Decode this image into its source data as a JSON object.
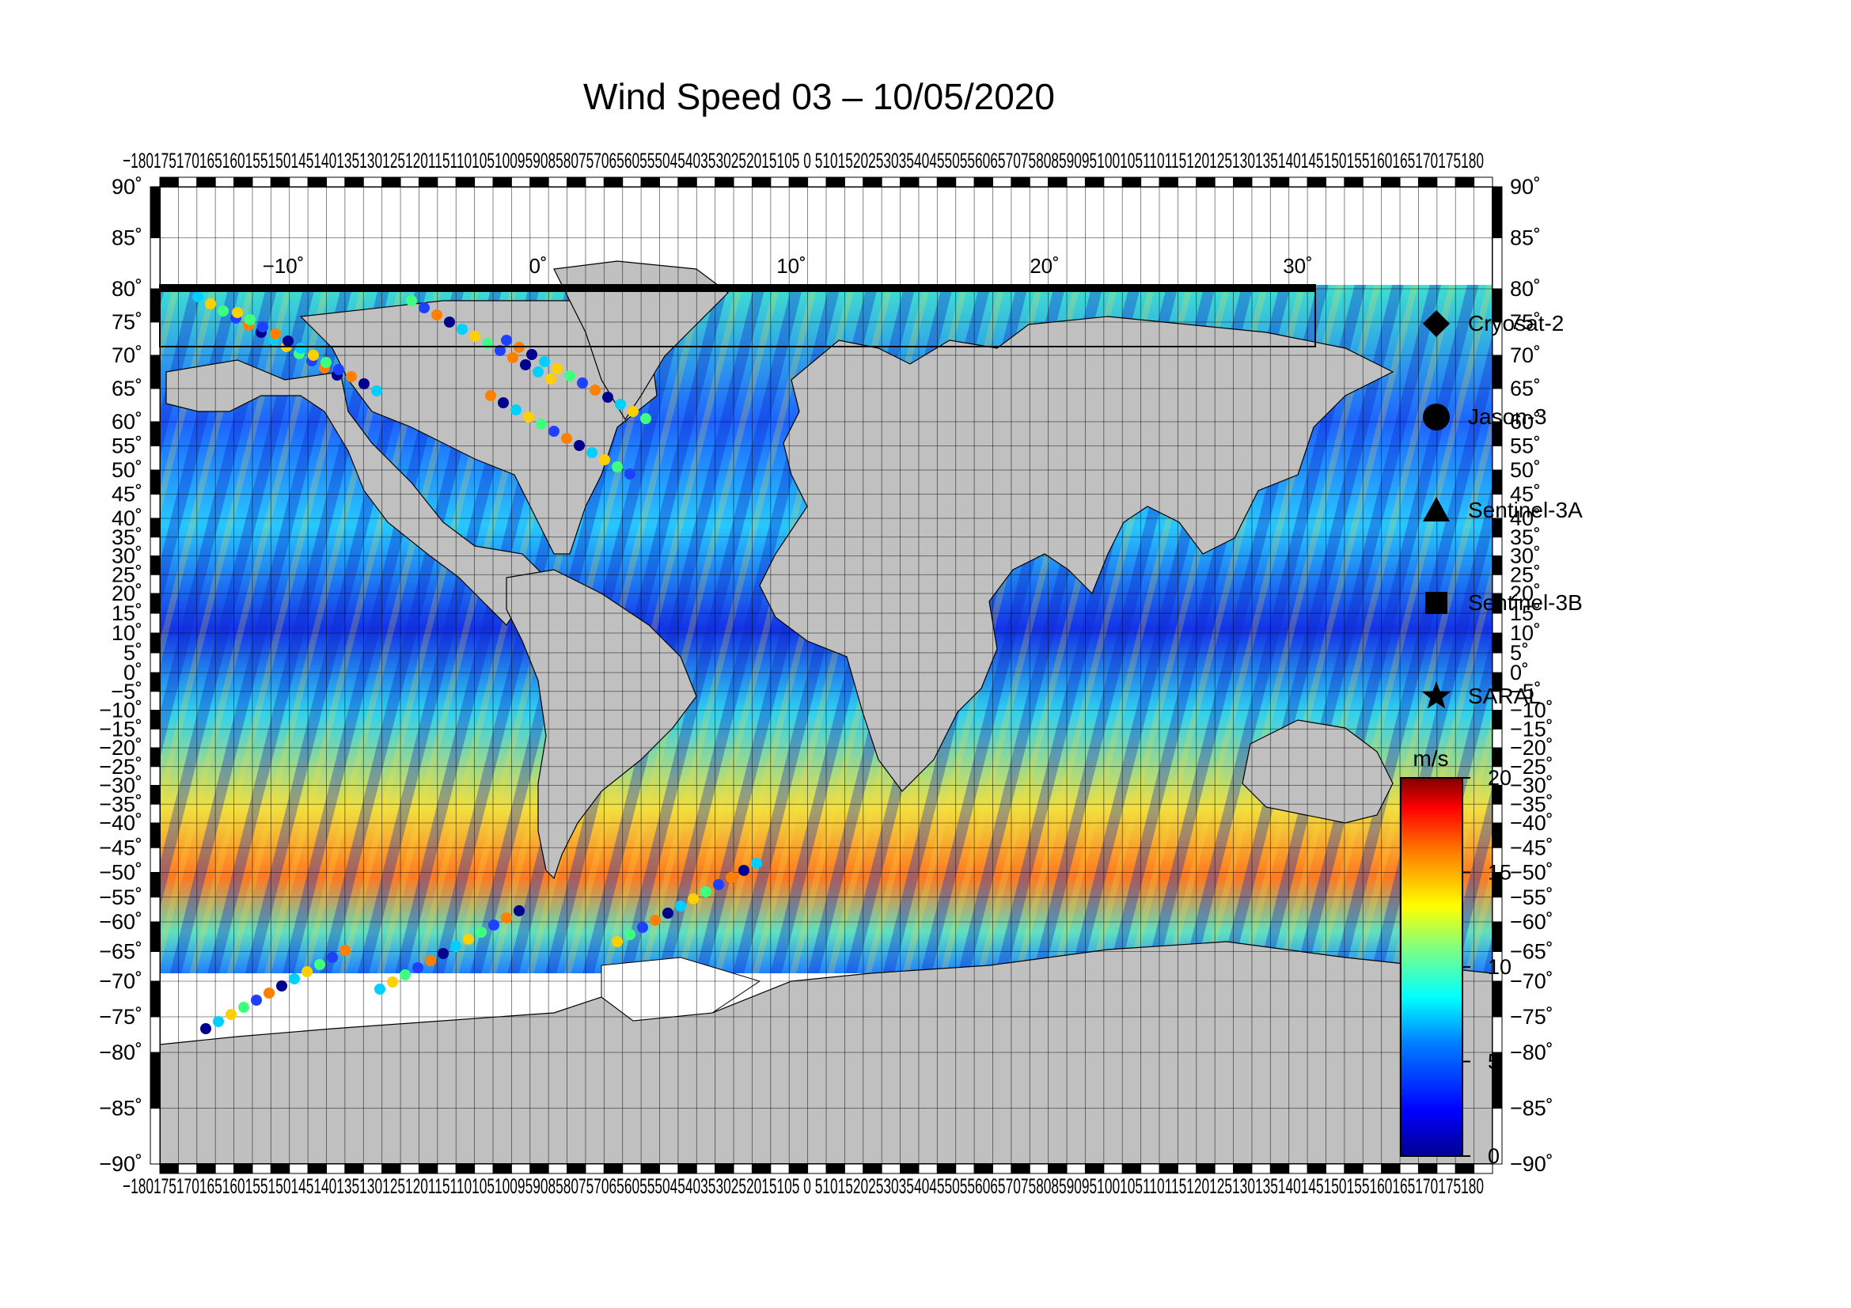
{
  "title": "Wind Speed 03 – 10/05/2020",
  "colorbar": {
    "unit": "m/s",
    "ticks": [
      "20",
      "15",
      "10",
      "5",
      "0"
    ],
    "tick_values": [
      20,
      15,
      10,
      5,
      0
    ],
    "range": [
      0,
      20
    ],
    "colors": [
      "#00008f",
      "#0000ff",
      "#0080ff",
      "#00ffff",
      "#80ff80",
      "#ffff00",
      "#ff8000",
      "#ff0000",
      "#800000"
    ]
  },
  "legend": [
    {
      "label": "Cryosat-2",
      "marker": "diamond"
    },
    {
      "label": "Jason-3",
      "marker": "circle"
    },
    {
      "label": "Sentinel-3A",
      "marker": "triangle"
    },
    {
      "label": "Sentinel-3B",
      "marker": "square"
    },
    {
      "label": "SARAL",
      "marker": "star"
    }
  ],
  "map": {
    "lon_range": [
      -180,
      180
    ],
    "lat_range": [
      -90,
      90
    ],
    "lat_labels": [
      "90˚",
      "85˚",
      "80˚",
      "75˚",
      "70˚",
      "65˚",
      "60˚",
      "55˚",
      "50˚",
      "45˚",
      "40˚",
      "35˚",
      "30˚",
      "25˚",
      "20˚",
      "15˚",
      "10˚",
      "5˚",
      "0˚",
      "−5˚",
      "−10˚",
      "−15˚",
      "−20˚",
      "−25˚",
      "−30˚",
      "−35˚",
      "−40˚",
      "−45˚",
      "−50˚",
      "−55˚",
      "−60˚",
      "−65˚",
      "−70˚",
      "−75˚",
      "−80˚",
      "−85˚",
      "−90˚"
    ],
    "lat_values": [
      90,
      85,
      80,
      75,
      70,
      65,
      60,
      55,
      50,
      45,
      40,
      35,
      30,
      25,
      20,
      15,
      10,
      5,
      0,
      -5,
      -10,
      -15,
      -20,
      -25,
      -30,
      -35,
      -40,
      -45,
      -50,
      -55,
      -60,
      -65,
      -70,
      -75,
      -80,
      -85,
      -90
    ],
    "lon_label_left": "−180",
    "lon_label_right": "180˚",
    "lon_labels_top": "−1801751701651601551501451401351301251201151101051009590858075706560555045403530252015105 0 5101520253035404550556065707580859095100105110115120125130135140145150155160165170175180",
    "inset_labels": [
      "−10˚",
      "0˚",
      "10˚",
      "20˚",
      "30˚"
    ],
    "land_color": "#c0c0c0"
  }
}
